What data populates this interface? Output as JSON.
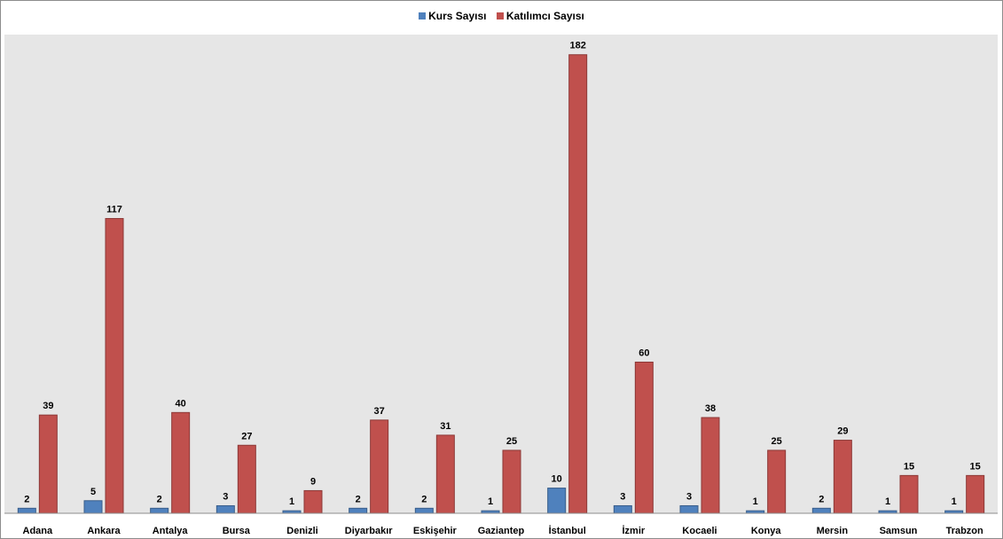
{
  "colors": {
    "kurs": "#4f81bd",
    "katilimci": "#c0504d",
    "plot_bg": "#e6e6e6",
    "kurs_border": "#385d8a",
    "katilimci_border": "#8c3836"
  },
  "chart_data": {
    "type": "bar",
    "title": "",
    "xlabel": "",
    "ylabel": "",
    "legend_position": "top",
    "grid": false,
    "ylim": [
      0,
      190
    ],
    "categories": [
      "Adana",
      "Ankara",
      "Antalya",
      "Bursa",
      "Denizli",
      "Diyarbakır",
      "Eskişehir",
      "Gaziantep",
      "İstanbul",
      "İzmir",
      "Kocaeli",
      "Konya",
      "Mersin",
      "Samsun",
      "Trabzon"
    ],
    "series": [
      {
        "name": "Kurs Sayısı",
        "values": [
          2,
          5,
          2,
          3,
          1,
          2,
          2,
          1,
          10,
          3,
          3,
          1,
          2,
          1,
          1
        ]
      },
      {
        "name": "Katılımcı Sayısı",
        "values": [
          39,
          117,
          40,
          27,
          9,
          37,
          31,
          25,
          182,
          60,
          38,
          25,
          29,
          15,
          15
        ]
      }
    ]
  }
}
